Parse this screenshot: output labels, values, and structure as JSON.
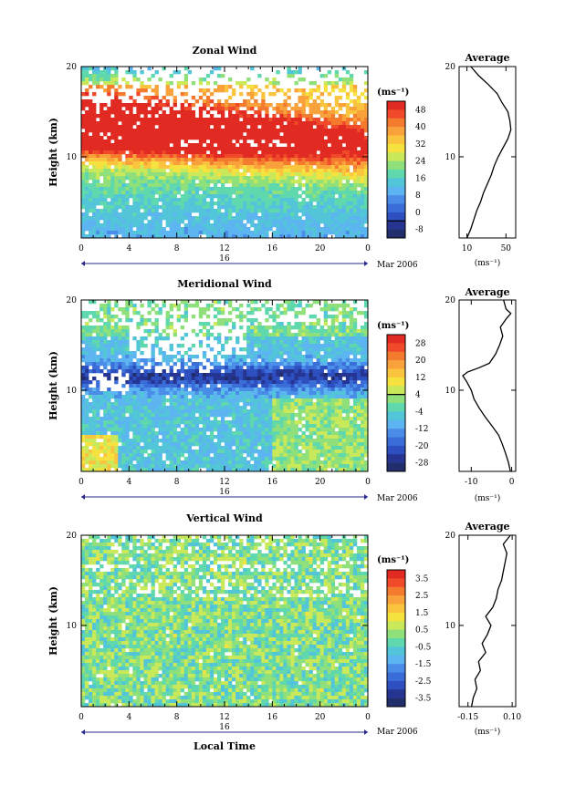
{
  "chart_data": [
    {
      "type": "heatmap",
      "title": "Zonal Wind",
      "ylabel": "Height (km)",
      "ylim": [
        1,
        20
      ],
      "y_ticks": [
        {
          "v": 10,
          "label": "10"
        },
        {
          "v": 20,
          "label": "20"
        }
      ],
      "x_ticks": [
        "0",
        "4",
        "8",
        "12",
        "16",
        "20",
        "0"
      ],
      "date_day": "16",
      "date_month": "Mar 2006",
      "colorbar": {
        "unit": "(ms⁻¹)",
        "labels": [
          "48",
          "40",
          "32",
          "24",
          "16",
          "8",
          "0",
          "-8"
        ],
        "zero_label": "0",
        "colors": [
          "#e02a22",
          "#f04a2a",
          "#f47a2d",
          "#f9a13b",
          "#fbc43f",
          "#f5e23f",
          "#c9e85a",
          "#8fe07a",
          "#5fd8ad",
          "#52c6d8",
          "#5cb4f0",
          "#4a8de8",
          "#3a6dd8",
          "#2d4fc0",
          "#253591",
          "#222d6b"
        ],
        "neg_segments": 2
      },
      "field": {
        "kind": "zonal",
        "vmin": -8,
        "vmax": 48
      },
      "average": {
        "title": "Average",
        "xlabel": "(ms⁻¹)",
        "x_ticks": [
          {
            "v": 10,
            "label": "10"
          },
          {
            "v": 50,
            "label": "50"
          }
        ],
        "xlim": [
          2,
          60
        ],
        "profile": [
          [
            1,
            10
          ],
          [
            2,
            14
          ],
          [
            3,
            17
          ],
          [
            4,
            20
          ],
          [
            5,
            24
          ],
          [
            6,
            27
          ],
          [
            7,
            31
          ],
          [
            8,
            35
          ],
          [
            9,
            38
          ],
          [
            10,
            42
          ],
          [
            11,
            47
          ],
          [
            12,
            52
          ],
          [
            13,
            55
          ],
          [
            14,
            54
          ],
          [
            15,
            52
          ],
          [
            16,
            46
          ],
          [
            17,
            41
          ],
          [
            18,
            32
          ],
          [
            19,
            22
          ],
          [
            20,
            14
          ]
        ]
      }
    },
    {
      "type": "heatmap",
      "title": "Meridional Wind",
      "ylabel": "Height (km)",
      "ylim": [
        1,
        20
      ],
      "y_ticks": [
        {
          "v": 10,
          "label": "10"
        },
        {
          "v": 20,
          "label": "20"
        }
      ],
      "x_ticks": [
        "0",
        "4",
        "8",
        "12",
        "16",
        "20",
        "0"
      ],
      "date_day": "16",
      "date_month": "Mar 2006",
      "colorbar": {
        "unit": "(ms⁻¹)",
        "labels": [
          "28",
          "20",
          "12",
          "4",
          "-4",
          "-12",
          "-20",
          "-28"
        ],
        "zero_label": "",
        "colors": [
          "#e02a22",
          "#f04a2a",
          "#f47a2d",
          "#f9a13b",
          "#fbc43f",
          "#f5e23f",
          "#c9e85a",
          "#8fe07a",
          "#5fd8ad",
          "#52c6d8",
          "#5cb4f0",
          "#4a8de8",
          "#3a6dd8",
          "#2d4fc0",
          "#253591",
          "#222d6b"
        ],
        "neg_segments": 9
      },
      "field": {
        "kind": "meridional",
        "vmin": -28,
        "vmax": 28
      },
      "average": {
        "title": "Average",
        "xlabel": "(ms⁻¹)",
        "x_ticks": [
          {
            "v": -10,
            "label": "-10"
          },
          {
            "v": 0,
            "label": "0"
          }
        ],
        "xlim": [
          -13,
          1
        ],
        "profile": [
          [
            1,
            -0.3
          ],
          [
            2,
            -0.8
          ],
          [
            3,
            -1.5
          ],
          [
            4,
            -2.3
          ],
          [
            5,
            -3.2
          ],
          [
            6,
            -4.8
          ],
          [
            7,
            -6.5
          ],
          [
            8,
            -8.0
          ],
          [
            9,
            -9.3
          ],
          [
            10,
            -10.0
          ],
          [
            11,
            -11.2
          ],
          [
            11.6,
            -12.1
          ],
          [
            12,
            -11.0
          ],
          [
            12.5,
            -8.0
          ],
          [
            13,
            -5.5
          ],
          [
            14,
            -4.0
          ],
          [
            15,
            -3.0
          ],
          [
            16,
            -2.2
          ],
          [
            17,
            -2.8
          ],
          [
            18,
            -1.2
          ],
          [
            18.5,
            -0.2
          ],
          [
            19,
            -1.4
          ],
          [
            20,
            -2.0
          ]
        ]
      }
    },
    {
      "type": "heatmap",
      "title": "Vertical Wind",
      "ylabel": "Height (km)",
      "ylim": [
        1,
        20
      ],
      "y_ticks": [
        {
          "v": 10,
          "label": "10"
        },
        {
          "v": 20,
          "label": "20"
        }
      ],
      "x_ticks": [
        "0",
        "4",
        "8",
        "12",
        "16",
        "20",
        "0"
      ],
      "date_day": "16",
      "date_month": "Mar 2006",
      "xlabel": "Local Time",
      "colorbar": {
        "unit": "(ms⁻¹)",
        "labels": [
          "3.5",
          "2.5",
          "1.5",
          "0.5",
          "-0.5",
          "-1.5",
          "-2.5",
          "-3.5"
        ],
        "zero_label": "",
        "colors": [
          "#e02a22",
          "#f04a2a",
          "#f47a2d",
          "#f9a13b",
          "#fbc43f",
          "#f5e23f",
          "#c9e85a",
          "#8fe07a",
          "#5fd8ad",
          "#52c6d8",
          "#5cb4f0",
          "#4a8de8",
          "#3a6dd8",
          "#2d4fc0",
          "#253591",
          "#222d6b"
        ],
        "neg_segments": 0
      },
      "field": {
        "kind": "vertical",
        "vmin": -3.5,
        "vmax": 3.5
      },
      "average": {
        "title": "Average",
        "xlabel": "(ms⁻¹)",
        "x_ticks": [
          {
            "v": -0.15,
            "label": "-0.15"
          },
          {
            "v": 0.1,
            "label": "0.10"
          }
        ],
        "xlim": [
          -0.2,
          0.12
        ],
        "profile": [
          [
            1,
            -0.13
          ],
          [
            2,
            -0.12
          ],
          [
            3,
            -0.1
          ],
          [
            4,
            -0.11
          ],
          [
            5,
            -0.08
          ],
          [
            6,
            -0.09
          ],
          [
            7,
            -0.05
          ],
          [
            8,
            -0.07
          ],
          [
            9,
            -0.04
          ],
          [
            10,
            -0.02
          ],
          [
            11,
            -0.05
          ],
          [
            12,
            -0.01
          ],
          [
            13,
            0.01
          ],
          [
            14,
            0.02
          ],
          [
            15,
            0.04
          ],
          [
            16,
            0.05
          ],
          [
            17,
            0.06
          ],
          [
            18,
            0.07
          ],
          [
            19,
            0.05
          ],
          [
            20,
            0.09
          ]
        ]
      }
    }
  ]
}
